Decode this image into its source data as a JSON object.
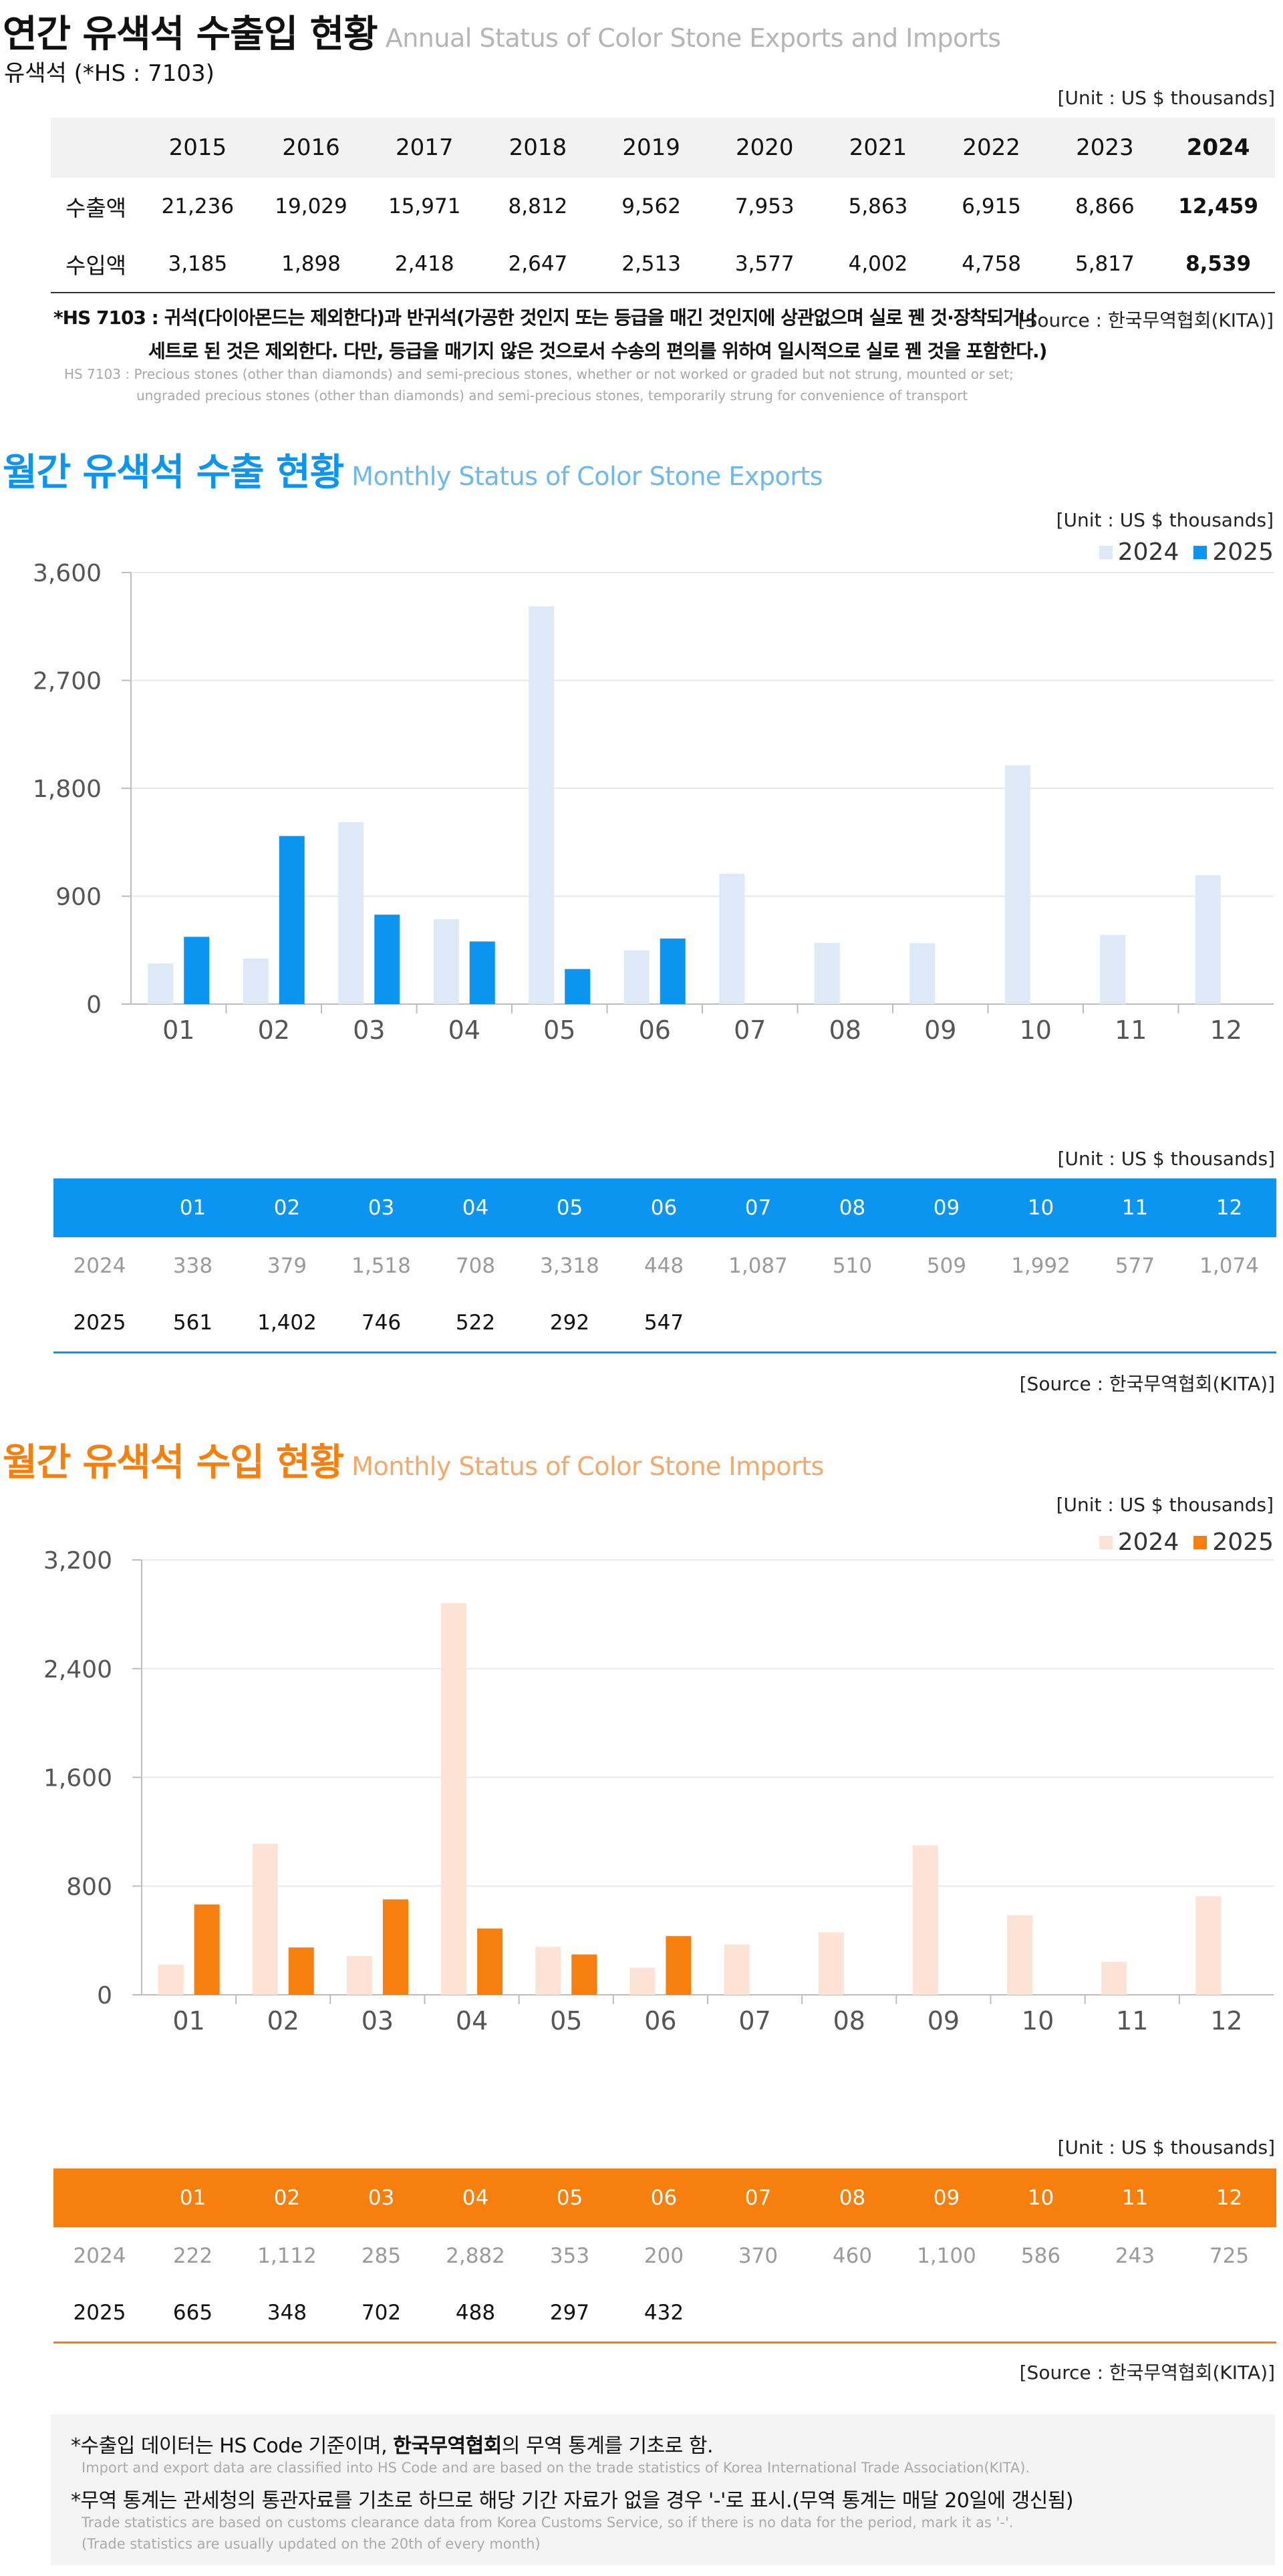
{
  "annual": {
    "title": "연간 유색석 수출입 현황",
    "subtitle": "Annual Status of Color Stone Exports and Imports",
    "hs_label": "유색석 (*HS : 7103)",
    "unit": "[Unit : US $ thousands]",
    "years": [
      "2015",
      "2016",
      "2017",
      "2018",
      "2019",
      "2020",
      "2021",
      "2022",
      "2023",
      "2024"
    ],
    "rows": [
      {
        "label": "수출액",
        "values": [
          "21,236",
          "19,029",
          "15,971",
          "8,812",
          "9,562",
          "7,953",
          "5,863",
          "6,915",
          "8,866",
          "12,459"
        ]
      },
      {
        "label": "수입액",
        "values": [
          "3,185",
          "1,898",
          "2,418",
          "2,647",
          "2,513",
          "3,577",
          "4,002",
          "4,758",
          "5,817",
          "8,539"
        ]
      }
    ],
    "note_ko_line1": "*HS 7103 : 귀석(다이아몬드는 제외한다)과 반귀석(가공한 것인지 또는 등급을 매긴 것인지에 상관없으며 실로 꿴 것·장착되거나",
    "note_ko_line2": "세트로 된 것은 제외한다. 다만, 등급을 매기지 않은 것으로서 수송의 편의를 위하여 일시적으로 실로 꿴 것을 포함한다.)",
    "note_en_line1": "HS 7103 : Precious stones (other than diamonds) and semi-precious stones, whether or not worked or graded but not strung, mounted or set;",
    "note_en_line2": "ungraded precious stones (other than diamonds) and semi-precious stones, temporarily strung for convenience of transport",
    "source": "[Source : 한국무역협회(KITA)]"
  },
  "exports": {
    "title": "월간 유색석 수출 현황",
    "subtitle": "Monthly Status of Color Stone Exports",
    "unit_chart": "[Unit : US $ thousands]",
    "unit_table": "[Unit : US $ thousands]",
    "source": "[Source : 한국무역협회(KITA)]",
    "table_months": [
      "01",
      "02",
      "03",
      "04",
      "05",
      "06",
      "07",
      "08",
      "09",
      "10",
      "11",
      "12"
    ],
    "table_rows": [
      {
        "label": "2024",
        "values": [
          "338",
          "379",
          "1,518",
          "708",
          "3,318",
          "448",
          "1,087",
          "510",
          "509",
          "1,992",
          "577",
          "1,074"
        ]
      },
      {
        "label": "2025",
        "values": [
          "561",
          "1,402",
          "746",
          "522",
          "292",
          "547",
          "",
          "",
          "",
          "",
          "",
          ""
        ]
      }
    ]
  },
  "imports": {
    "title": "월간 유색석 수입 현황",
    "subtitle": "Monthly Status of Color Stone Imports",
    "unit_chart": "[Unit : US $ thousands]",
    "unit_table": "[Unit : US $ thousands]",
    "source": "[Source : 한국무역협회(KITA)]",
    "table_months": [
      "01",
      "02",
      "03",
      "04",
      "05",
      "06",
      "07",
      "08",
      "09",
      "10",
      "11",
      "12"
    ],
    "table_rows": [
      {
        "label": "2024",
        "values": [
          "222",
          "1,112",
          "285",
          "2,882",
          "353",
          "200",
          "370",
          "460",
          "1,100",
          "586",
          "243",
          "725"
        ]
      },
      {
        "label": "2025",
        "values": [
          "665",
          "348",
          "702",
          "488",
          "297",
          "432",
          "",
          "",
          "",
          "",
          "",
          ""
        ]
      }
    ]
  },
  "chart_data": [
    {
      "type": "bar",
      "categories": [
        "01",
        "02",
        "03",
        "04",
        "05",
        "06",
        "07",
        "08",
        "09",
        "10",
        "11",
        "12"
      ],
      "series": [
        {
          "name": "2024",
          "color": "#dde9f6",
          "values": [
            338,
            379,
            1518,
            708,
            3318,
            448,
            1087,
            510,
            509,
            1992,
            577,
            1074
          ]
        },
        {
          "name": "2025",
          "color": "#0a96f0",
          "values": [
            561,
            1402,
            746,
            522,
            292,
            547,
            null,
            null,
            null,
            null,
            null,
            null
          ]
        }
      ],
      "ylim": [
        0,
        3600
      ],
      "yticks": [
        0,
        900,
        1800,
        2700,
        3600
      ],
      "ytick_labels": [
        "0",
        "900",
        "1,800",
        "2,700",
        "3,600"
      ],
      "grid": true,
      "legend": "top-right"
    },
    {
      "type": "bar",
      "categories": [
        "01",
        "02",
        "03",
        "04",
        "05",
        "06",
        "07",
        "08",
        "09",
        "10",
        "11",
        "12"
      ],
      "series": [
        {
          "name": "2024",
          "color": "#fde3d5",
          "values": [
            222,
            1112,
            285,
            2882,
            353,
            200,
            370,
            460,
            1100,
            586,
            243,
            725
          ]
        },
        {
          "name": "2025",
          "color": "#f77f0e",
          "values": [
            665,
            348,
            702,
            488,
            297,
            432,
            null,
            null,
            null,
            null,
            null,
            null
          ]
        }
      ],
      "ylim": [
        0,
        3200
      ],
      "yticks": [
        0,
        800,
        1600,
        2400,
        3200
      ],
      "ytick_labels": [
        "0",
        "800",
        "1,600",
        "2,400",
        "3,200"
      ],
      "grid": true,
      "legend": "top-right"
    }
  ],
  "footer": {
    "note1_pre": "*수출입 데이터는 HS Code 기준이며, ",
    "note1_bold": "한국무역협회",
    "note1_post": "의 무역 통계를 기초로 함.",
    "note1_en": "Import and export data are classified into HS Code and are based on the trade statistics of Korea International  Trade Association(KITA).",
    "note2": "*무역 통계는 관세청의  통관자료를 기초로 하므로 해당 기간 자료가 없을 경우 '-'로 표시.(무역 통계는 매달 20일에 갱신됨)",
    "note2_en1": "Trade statistics are based on customs clearance data from Korea Customs Service, so if there is no data for the period, mark it as '-'.",
    "note2_en2": "(Trade statistics are usually updated on the 20th of every month)"
  }
}
